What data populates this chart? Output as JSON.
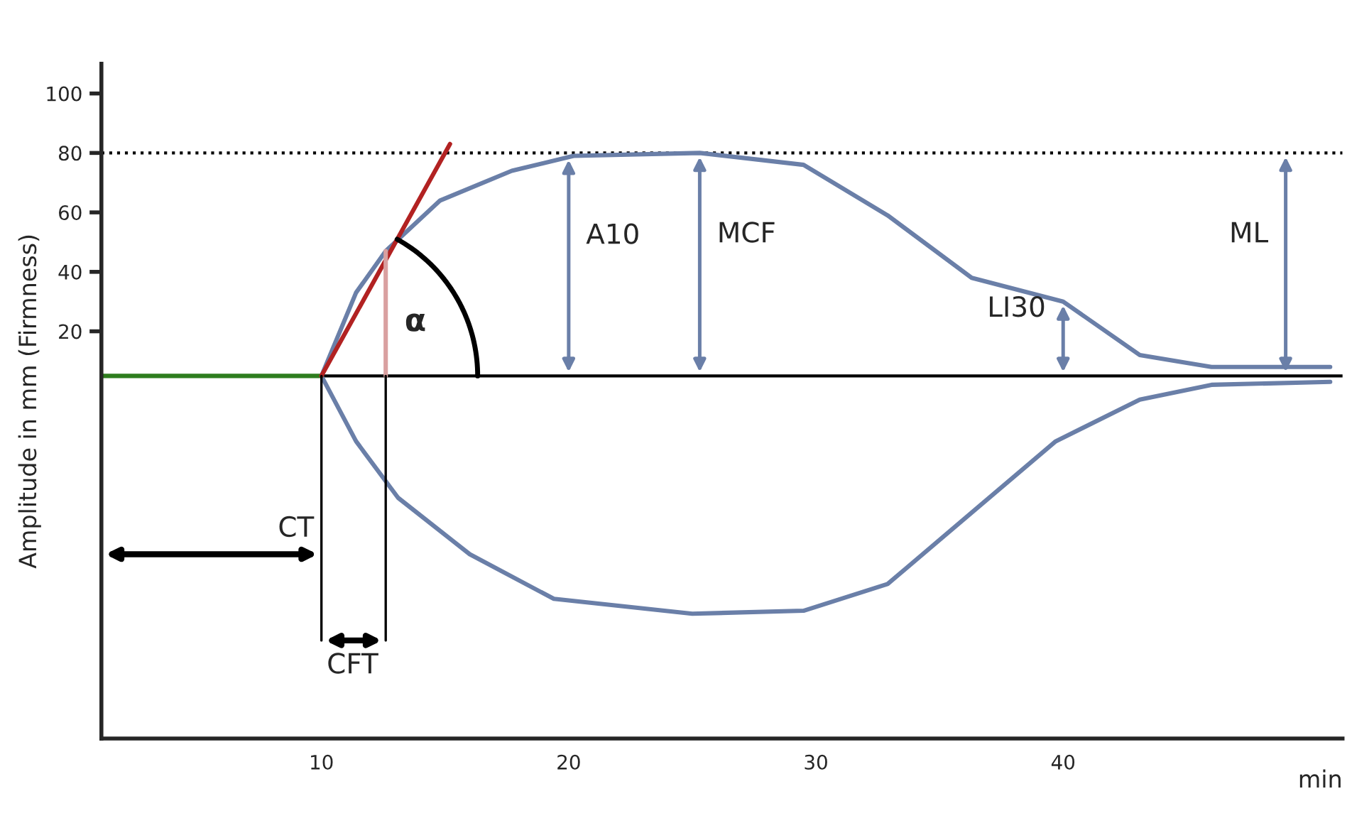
{
  "chart_data": {
    "type": "line",
    "xlabel": "min",
    "ylabel": "Amplitude in mm (Firmness)",
    "xlim": [
      1.1,
      51.3
    ],
    "ylim": [
      -117,
      110
    ],
    "xticks": [
      10,
      20,
      30,
      40
    ],
    "yticks": [
      20,
      40,
      60,
      80,
      100
    ],
    "grid": false,
    "legend": false,
    "series": [
      {
        "color": "#6a7fa8",
        "x": [
          10,
          11.4,
          12.6,
          14.8,
          17.7,
          20.2,
          25.3,
          29.5,
          32.9,
          36.3,
          40,
          43.1,
          46,
          50.8
        ],
        "values": [
          5,
          33,
          47,
          64,
          74,
          79,
          80,
          76,
          59,
          38,
          30,
          12,
          8,
          8
        ]
      },
      {
        "color": "#6a7fa8",
        "x": [
          10,
          11.4,
          13.1,
          16,
          19.4,
          25,
          29.5,
          32.9,
          36.3,
          39.7,
          43.1,
          46,
          50.8
        ],
        "values": [
          5,
          -17,
          -36,
          -55,
          -70,
          -75,
          -74,
          -65,
          -41,
          -17,
          -3,
          2,
          3
        ]
      },
      {
        "color": "#2e7d1e",
        "x": [
          1.1,
          10
        ],
        "values": [
          5,
          5
        ]
      },
      {
        "color": "#b22222",
        "x": [
          10,
          15.2
        ],
        "values": [
          5,
          83
        ]
      },
      {
        "color": "#d9a0a0",
        "x": [
          12.6,
          12.6
        ],
        "values": [
          5,
          47
        ]
      },
      {
        "color": "#000000",
        "x": [
          10,
          10
        ],
        "values": [
          5,
          -84
        ]
      },
      {
        "color": "#000000",
        "x": [
          12.6,
          12.6
        ],
        "values": [
          5,
          -84
        ]
      }
    ],
    "ref_lines": [
      {
        "axis": "y",
        "value": 5,
        "color": "#000000"
      },
      {
        "axis": "y",
        "value": 80,
        "color": "#000000",
        "line_style": "dotted"
      }
    ],
    "annotations": [
      {
        "text": "A10",
        "x": 20,
        "y": 79
      },
      {
        "text": "MCF",
        "x": 25.3,
        "y": 80
      },
      {
        "text": "LI30",
        "x": 40,
        "y": 30
      },
      {
        "text": "ML",
        "x": 49,
        "y": 80
      },
      {
        "text": "CT",
        "x": 10,
        "y": -55
      },
      {
        "text": "CFT",
        "x": 12.6,
        "y": -84
      },
      "α"
    ]
  }
}
